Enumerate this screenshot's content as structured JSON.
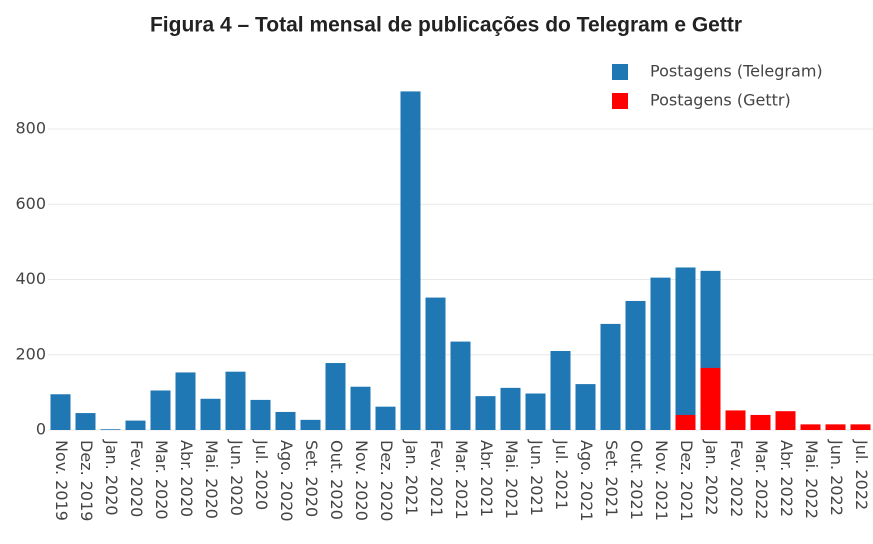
{
  "chart_data": {
    "type": "bar",
    "barmode": "overlay",
    "title": "Figura 4 – Total mensal de publicações do Telegram e Gettr",
    "categories": [
      "Nov. 2019",
      "Dez. 2019",
      "Jan. 2020",
      "Fev. 2020",
      "Mar. 2020",
      "Abr. 2020",
      "Mai. 2020",
      "Jun. 2020",
      "Jul. 2020",
      "Ago. 2020",
      "Set. 2020",
      "Out. 2020",
      "Nov. 2020",
      "Dez. 2020",
      "Jan. 2021",
      "Fev. 2021",
      "Mar. 2021",
      "Abr. 2021",
      "Mai. 2021",
      "Jun. 2021",
      "Jul. 2021",
      "Ago. 2021",
      "Set. 2021",
      "Out. 2021",
      "Nov. 2021",
      "Dez. 2021",
      "Jan. 2022",
      "Fev. 2022",
      "Mar. 2022",
      "Abr. 2022",
      "Mai. 2022",
      "Jun. 2022",
      "Jul. 2022"
    ],
    "series": [
      {
        "name": "Postagens (Telegram)",
        "color": "#1f77b4",
        "values": [
          95,
          45,
          2,
          25,
          105,
          153,
          83,
          155,
          80,
          48,
          27,
          178,
          115,
          62,
          900,
          352,
          235,
          90,
          112,
          97,
          210,
          122,
          282,
          343,
          405,
          432,
          423,
          null,
          null,
          null,
          null,
          null,
          null
        ]
      },
      {
        "name": "Postagens (Gettr)",
        "color": "#ff0000",
        "values": [
          null,
          null,
          null,
          null,
          null,
          null,
          null,
          null,
          null,
          null,
          null,
          null,
          null,
          null,
          null,
          null,
          null,
          null,
          null,
          null,
          null,
          null,
          null,
          null,
          null,
          40,
          165,
          52,
          40,
          50,
          15,
          15,
          15
        ]
      }
    ],
    "ylim": [
      0,
      950
    ],
    "yticks": [
      0,
      200,
      400,
      600,
      800
    ],
    "grid": true,
    "legend": "top-right"
  }
}
